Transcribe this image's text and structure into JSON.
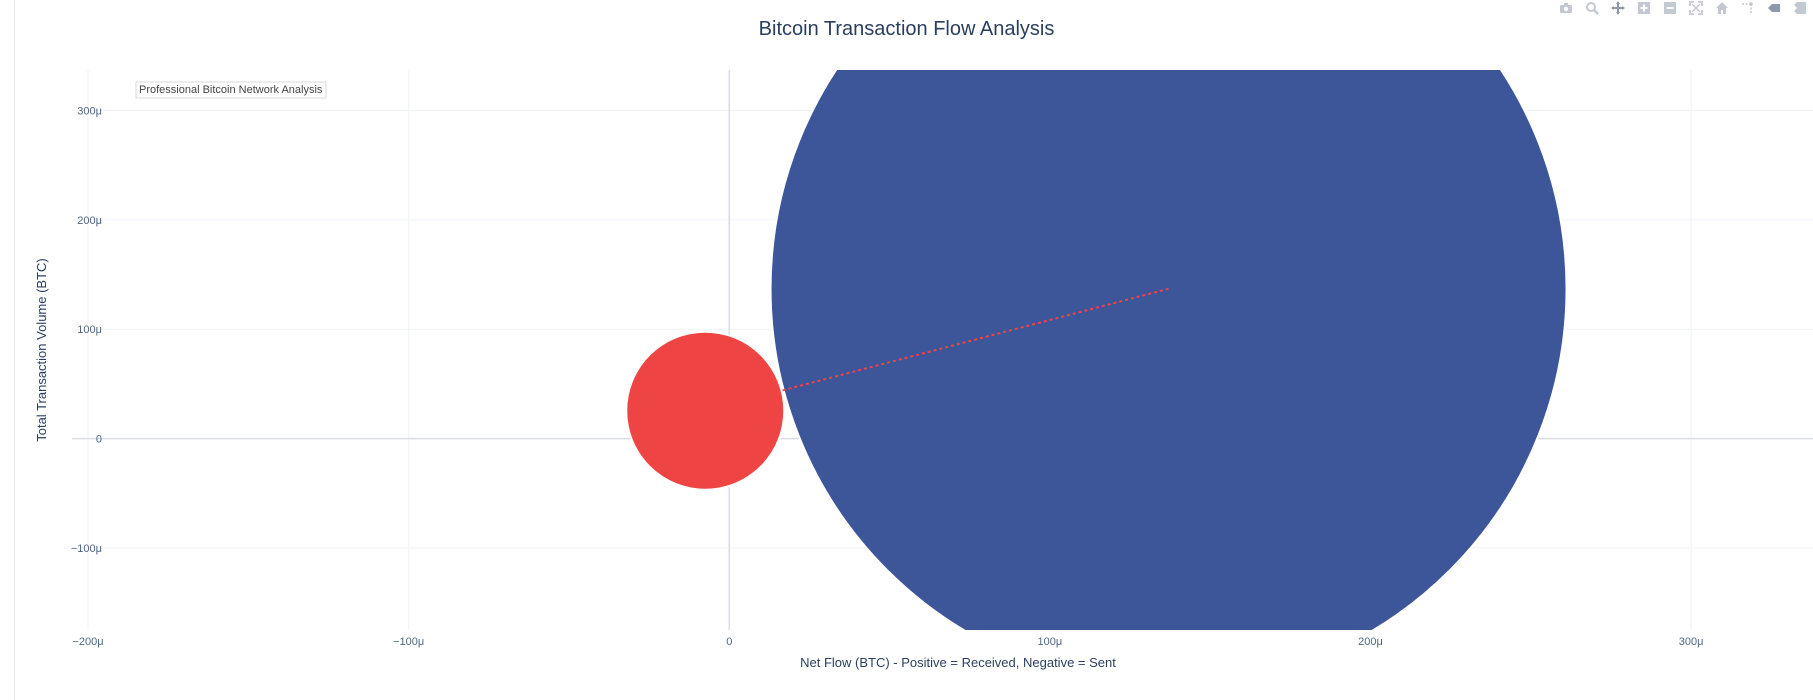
{
  "modebar": {
    "icons": [
      "camera-icon",
      "zoom-icon",
      "pan-icon",
      "zoom-in-icon",
      "zoom-out-icon",
      "autoscale-icon",
      "home-icon",
      "spike-lines-icon",
      "hover-closest-icon",
      "hover-compare-icon"
    ]
  },
  "chart_data": {
    "type": "scatter",
    "title": "Bitcoin Transaction Flow Analysis",
    "xlabel": "Net Flow (BTC) - Positive = Received, Negative = Sent",
    "ylabel": "Total Transaction Volume (BTC)",
    "xlim": [
      -0.000205,
      0.000338
    ],
    "ylim": [
      -0.000175,
      0.000337
    ],
    "x_ticks": [
      {
        "value": -0.0002,
        "label": "−200μ"
      },
      {
        "value": -0.0001,
        "label": "−100μ"
      },
      {
        "value": 0,
        "label": "0"
      },
      {
        "value": 0.0001,
        "label": "100μ"
      },
      {
        "value": 0.0002,
        "label": "200μ"
      },
      {
        "value": 0.0003,
        "label": "300μ"
      }
    ],
    "y_ticks": [
      {
        "value": -0.0001,
        "label": "−100μ"
      },
      {
        "value": 0,
        "label": "0"
      },
      {
        "value": 0.0001,
        "label": "100μ"
      },
      {
        "value": 0.0002,
        "label": "200μ"
      },
      {
        "value": 0.0003,
        "label": "300μ"
      }
    ],
    "grid": true,
    "annotation": "Professional Bitcoin Network Analysis",
    "series": [
      {
        "points": [
          {
            "x": 0.000137,
            "y": 0.000137,
            "color": "#3d5599"
          },
          {
            "x": -7.5e-06,
            "y": 2.55e-05,
            "color": "#ef4444"
          }
        ]
      }
    ],
    "flow_line": {
      "from": {
        "x": 0.000137,
        "y": 0.000137
      },
      "to": {
        "x": -7.5e-06,
        "y": 2.55e-05
      },
      "color": "#ef4444",
      "style": "dotted"
    }
  }
}
